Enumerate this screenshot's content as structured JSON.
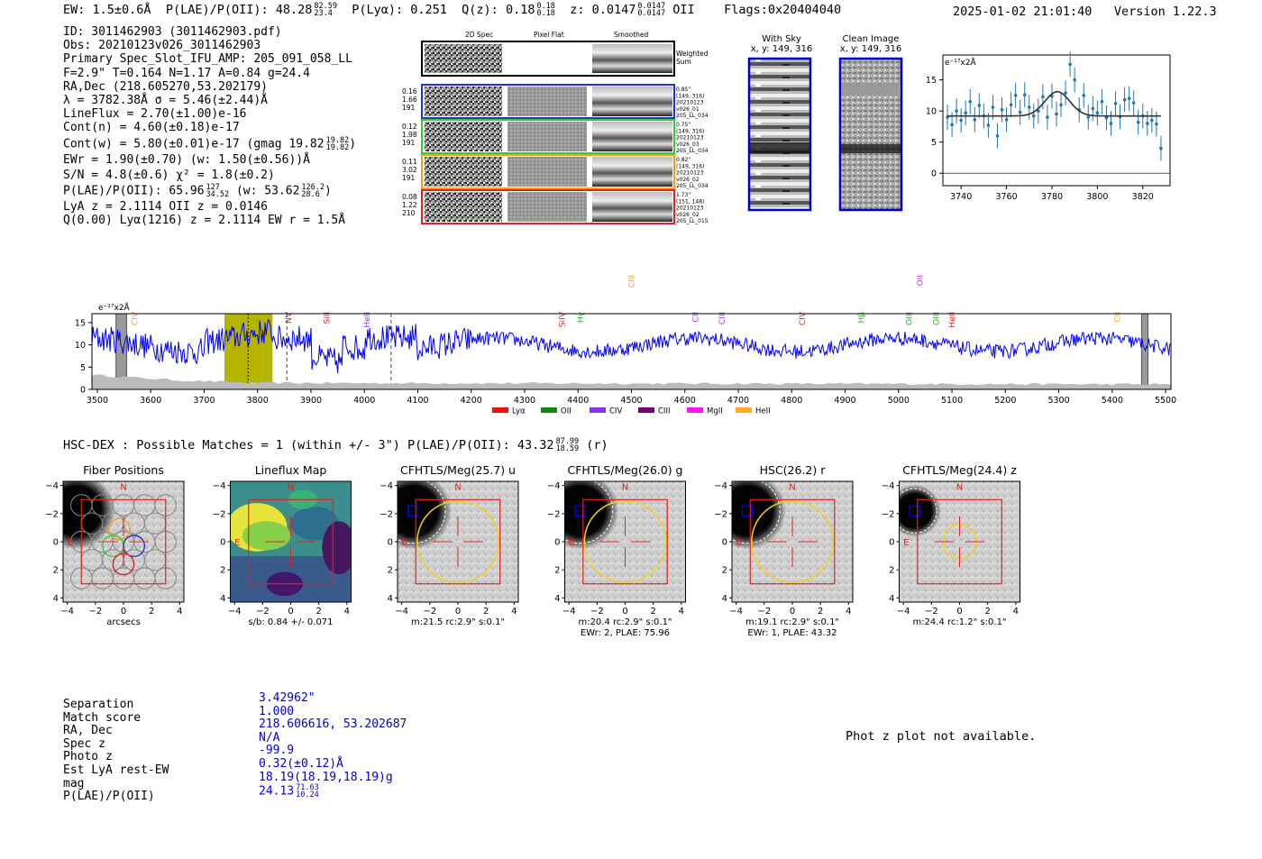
{
  "header": {
    "ew": "EW: 1.5±0.6Å",
    "plae_label": "P(LAE)/P(OII): 48.28",
    "plae_hi": "82.59",
    "plae_lo": "23.4",
    "plya": "P(Lyα): 0.251",
    "qz_label": "Q(z): 0.18",
    "qz_hi": "0.18",
    "qz_lo": "0.18",
    "z_label": "z: 0.0147",
    "z_hi": "0.0147",
    "z_lo": "0.0147",
    "z_line": "OII",
    "flags": "Flags:0x20404040",
    "timestamp": "2025-01-02 21:01:40",
    "version": "Version 1.22.3"
  },
  "info": {
    "id": "ID: 3011462903 (3011462903.pdf)",
    "obs": "Obs: 20210123v026_3011462903",
    "primary": "Primary Spec_Slot_IFU_AMP: 205_091_058_LL",
    "fit": "F=2.9\"  T=0.164  N=1.17  A=0.84  g=24.4",
    "radec": "RA,Dec (218.605270,53.202179)",
    "lambda": "λ = 3782.38Å   σ = 5.46(±2.44)Å",
    "lineflux": "LineFlux = 2.70(±1.00)e-16",
    "contn": "Cont(n) = 4.60(±0.18)e-17",
    "contw": "Cont(w) = 5.80(±0.01)e-17 (gmag 19.82",
    "contw_hi": "19.82",
    "contw_lo": "19.82",
    "contw_end": ")",
    "ewr": "EWr = 1.90(±0.70) (w: 1.50(±0.56))Å",
    "sn": "S/N = 4.8(±0.6)  χ² = 1.8(±0.2)",
    "plae2": "P(LAE)/P(OII): 65.96",
    "plae2_hi": "127",
    "plae2_lo": "34.52",
    "plae2_w": "(w: 53.62",
    "plae2_w_hi": "126.2",
    "plae2_w_lo": "28.6",
    "plae2_end": ")",
    "lya": "LyA z = 2.1114  OII z = 0.0146",
    "q": "Q(0.00) Lyα(1216) z = 2.1114  EW r = 1.5Å"
  },
  "cutouts": {
    "col_titles": [
      "2D Spec",
      "Pixel Flat",
      "Smoothed"
    ],
    "weighted": [
      "Weighted",
      "Sum"
    ],
    "rows": [
      {
        "left": [
          "0.16",
          "1.66",
          "191"
        ],
        "right": [
          "0.85\"",
          "(149, 316)",
          "20210123",
          "v026_01",
          "205_LL_034"
        ],
        "color": "#2233cc"
      },
      {
        "left": [
          "0.12",
          "1.98",
          "191"
        ],
        "right": [
          "0.75\"",
          "(149, 316)",
          "20210123",
          "v026_03",
          "205_LL_034"
        ],
        "color": "#33cc33"
      },
      {
        "left": [
          "0.11",
          "3.02",
          "191"
        ],
        "right": [
          "0.82\"",
          "(149, 316)",
          "20210123",
          "v026_02",
          "205_LL_034"
        ],
        "color": "#f0a020"
      },
      {
        "left": [
          "0.08",
          "1.22",
          "210"
        ],
        "right": [
          "1.73\"",
          "(151, 148)",
          "20210123",
          "v026_02",
          "205_LL_015"
        ],
        "color": "#dd2222"
      }
    ],
    "with_sky_title": "With Sky",
    "with_sky_coord": "x, y: 149, 316",
    "clean_title": "Clean Image",
    "clean_coord": "x, y: 149, 316"
  },
  "colors": {
    "spectrum": "#0000ff",
    "fit": "#1f77b4",
    "highlight": "#b5b500",
    "red": "#dd2222",
    "blue": "#0000cc",
    "yellow": "#f5d020"
  },
  "chart_data": [
    {
      "type": "scatter",
      "name": "zoom-line-fit",
      "ylabel_units": "e⁻¹⁷x2Å",
      "xlim": [
        3732,
        3832
      ],
      "ylim": [
        -2,
        19
      ],
      "xticks": [
        3740,
        3760,
        3780,
        3800,
        3820
      ],
      "yticks": [
        0,
        5,
        10,
        15
      ],
      "baseline": 9.2,
      "gauss_center": 3782.38,
      "gauss_amp": 3.9,
      "gauss_sigma": 5.46,
      "x": [
        3734,
        3736,
        3738,
        3740,
        3742,
        3744,
        3746,
        3748,
        3750,
        3752,
        3754,
        3756,
        3758,
        3760,
        3762,
        3764,
        3766,
        3768,
        3770,
        3772,
        3774,
        3776,
        3778,
        3780,
        3782,
        3784,
        3786,
        3788,
        3790,
        3792,
        3794,
        3796,
        3798,
        3800,
        3802,
        3804,
        3806,
        3808,
        3810,
        3812,
        3814,
        3816,
        3818,
        3820,
        3822,
        3824,
        3826,
        3828
      ],
      "y": [
        9.0,
        7.8,
        10.0,
        8.5,
        9.7,
        11.5,
        8.6,
        10.9,
        9.2,
        7.7,
        10.6,
        6.0,
        10.2,
        8.6,
        11.0,
        12.5,
        9.8,
        12.6,
        10.6,
        9.2,
        10.0,
        12.3,
        9.0,
        12.4,
        9.5,
        11.0,
        12.9,
        17.5,
        15.0,
        10.2,
        12.5,
        9.0,
        10.4,
        9.7,
        11.5,
        8.9,
        8.0,
        11.2,
        9.1,
        11.8,
        12.0,
        11.3,
        8.2,
        9.2,
        8.0,
        8.5,
        7.9,
        4.0
      ],
      "err": [
        2,
        2,
        2,
        2,
        2,
        2,
        2,
        2,
        2,
        2,
        2,
        2,
        2,
        2,
        2,
        2,
        2,
        2,
        2,
        2,
        2,
        2,
        2,
        2,
        2,
        2,
        2,
        2,
        2,
        2,
        2,
        2,
        2,
        2,
        2,
        2,
        2,
        2,
        2,
        2,
        2,
        2,
        2,
        2,
        2,
        2,
        2,
        2
      ]
    },
    {
      "type": "line",
      "name": "full-spectrum",
      "ylabel_units": "e⁻¹⁷x2Å",
      "xlim": [
        3490,
        5510
      ],
      "ylim": [
        0,
        17
      ],
      "xticks": [
        3500,
        3600,
        3700,
        3800,
        3900,
        4000,
        4100,
        4200,
        4300,
        4400,
        4500,
        4600,
        4700,
        4800,
        4900,
        5000,
        5100,
        5200,
        5300,
        5400,
        5500
      ],
      "yticks": [
        0,
        5,
        10,
        15
      ],
      "highlight_range": [
        3738,
        3828
      ],
      "detected_line": 3782.38,
      "dashed_lines": [
        3855,
        4050
      ],
      "masked_ranges": [
        [
          3535,
          3555
        ],
        [
          5455,
          5467
        ]
      ],
      "line_markers": [
        {
          "label": "CIV",
          "wave": 3570,
          "color": "#f0a020",
          "level": 1
        },
        {
          "label": "NV",
          "wave": 3858,
          "color": "#dd2222",
          "level": 1
        },
        {
          "label": "SiII",
          "wave": 3930,
          "color": "#dd2222",
          "level": 1
        },
        {
          "label": "HeII",
          "wave": 4005,
          "color": "#9933ee",
          "level": 1
        },
        {
          "label": "CIII",
          "wave": 4500,
          "color": "#f0a020",
          "level": 0
        },
        {
          "label": "SiIV",
          "wave": 4370,
          "color": "#dd2222",
          "level": 1
        },
        {
          "label": "Hγ",
          "wave": 4405,
          "color": "#22aa22",
          "level": 1
        },
        {
          "label": "CII",
          "wave": 4620,
          "color": "#9933ee",
          "level": 1
        },
        {
          "label": "CIII",
          "wave": 4670,
          "color": "#9933ee",
          "level": 1
        },
        {
          "label": "CIV",
          "wave": 4820,
          "color": "#dd2222",
          "level": 1
        },
        {
          "label": "Hβ",
          "wave": 4930,
          "color": "#22aa22",
          "level": 1
        },
        {
          "label": "OII",
          "wave": 5040,
          "color": "#ee22ee",
          "level": 0
        },
        {
          "label": "OIII",
          "wave": 5020,
          "color": "#22aa22",
          "level": 1
        },
        {
          "label": "OIII",
          "wave": 5070,
          "color": "#22aa22",
          "level": 1
        },
        {
          "label": "HeII",
          "wave": 5100,
          "color": "#dd2222",
          "level": 1
        },
        {
          "label": "CII",
          "wave": 5410,
          "color": "#f0a020",
          "level": 1
        }
      ],
      "legend": [
        {
          "label": "Lyα",
          "color": "#ee1111"
        },
        {
          "label": "OII",
          "color": "#118811"
        },
        {
          "label": "CIV",
          "color": "#8833ee"
        },
        {
          "label": "CIII",
          "color": "#770077"
        },
        {
          "label": "MgII",
          "color": "#ff11ff"
        },
        {
          "label": "HeII",
          "color": "#ffaa22"
        }
      ]
    }
  ],
  "hsc": {
    "title": "HSC-DEX : Possible Matches = 1 (within +/- 3\")  P(LAE)/P(OII): 43.32",
    "title_hi": "87.99",
    "title_lo": "18.59",
    "title_end": "(r)"
  },
  "panels": [
    {
      "title": "Fiber Positions",
      "caption1": "arcsecs",
      "caption2": "",
      "type": "fiber"
    },
    {
      "title": "Lineflux Map",
      "caption1": "s/b: 0.84 +/- 0.071",
      "caption2": "",
      "type": "flux"
    },
    {
      "title": "CFHTLS/Meg(25.7) u",
      "caption1": "m:21.5 rc:2.9\"  s:0.1\"",
      "caption2": "",
      "type": "img",
      "aperture_r": 2.9
    },
    {
      "title": "CFHTLS/Meg(26.0) g",
      "caption1": "m:20.4 rc:2.9\"  s:0.1\"",
      "caption2": "EWr: 2, PLAE: 75.96",
      "type": "img",
      "aperture_r": 2.9
    },
    {
      "title": "HSC(26.2) r",
      "caption1": "m:19.1 rc:2.9\"  s:0.1\"",
      "caption2": "EWr: 1, PLAE: 43.32",
      "type": "img",
      "aperture_r": 2.9
    },
    {
      "title": "CFHTLS/Meg(24.4) z",
      "caption1": "m:24.4 rc:1.2\"  s:0.1\"",
      "caption2": "",
      "type": "img",
      "aperture_r": 1.2
    }
  ],
  "panel_axis": {
    "ticks": [
      "−4",
      "−2",
      "0",
      "2",
      "4"
    ],
    "north": "N",
    "east": "E"
  },
  "match": {
    "labels": [
      "Separation",
      "Match score",
      "RA, Dec",
      "Spec z",
      "Photo z",
      "Est LyA rest-EW",
      "mag",
      "P(LAE)/P(OII)"
    ],
    "values": [
      "3.42962\"",
      "1.000",
      "218.606616, 53.202687",
      "N/A",
      "-99.9",
      "0.32(±0.12)Å",
      "18.19(18.19,18.19)g",
      "24.13"
    ],
    "plae_hi": "71.63",
    "plae_lo": "10.24",
    "photz_note": "Phot z plot not available."
  }
}
